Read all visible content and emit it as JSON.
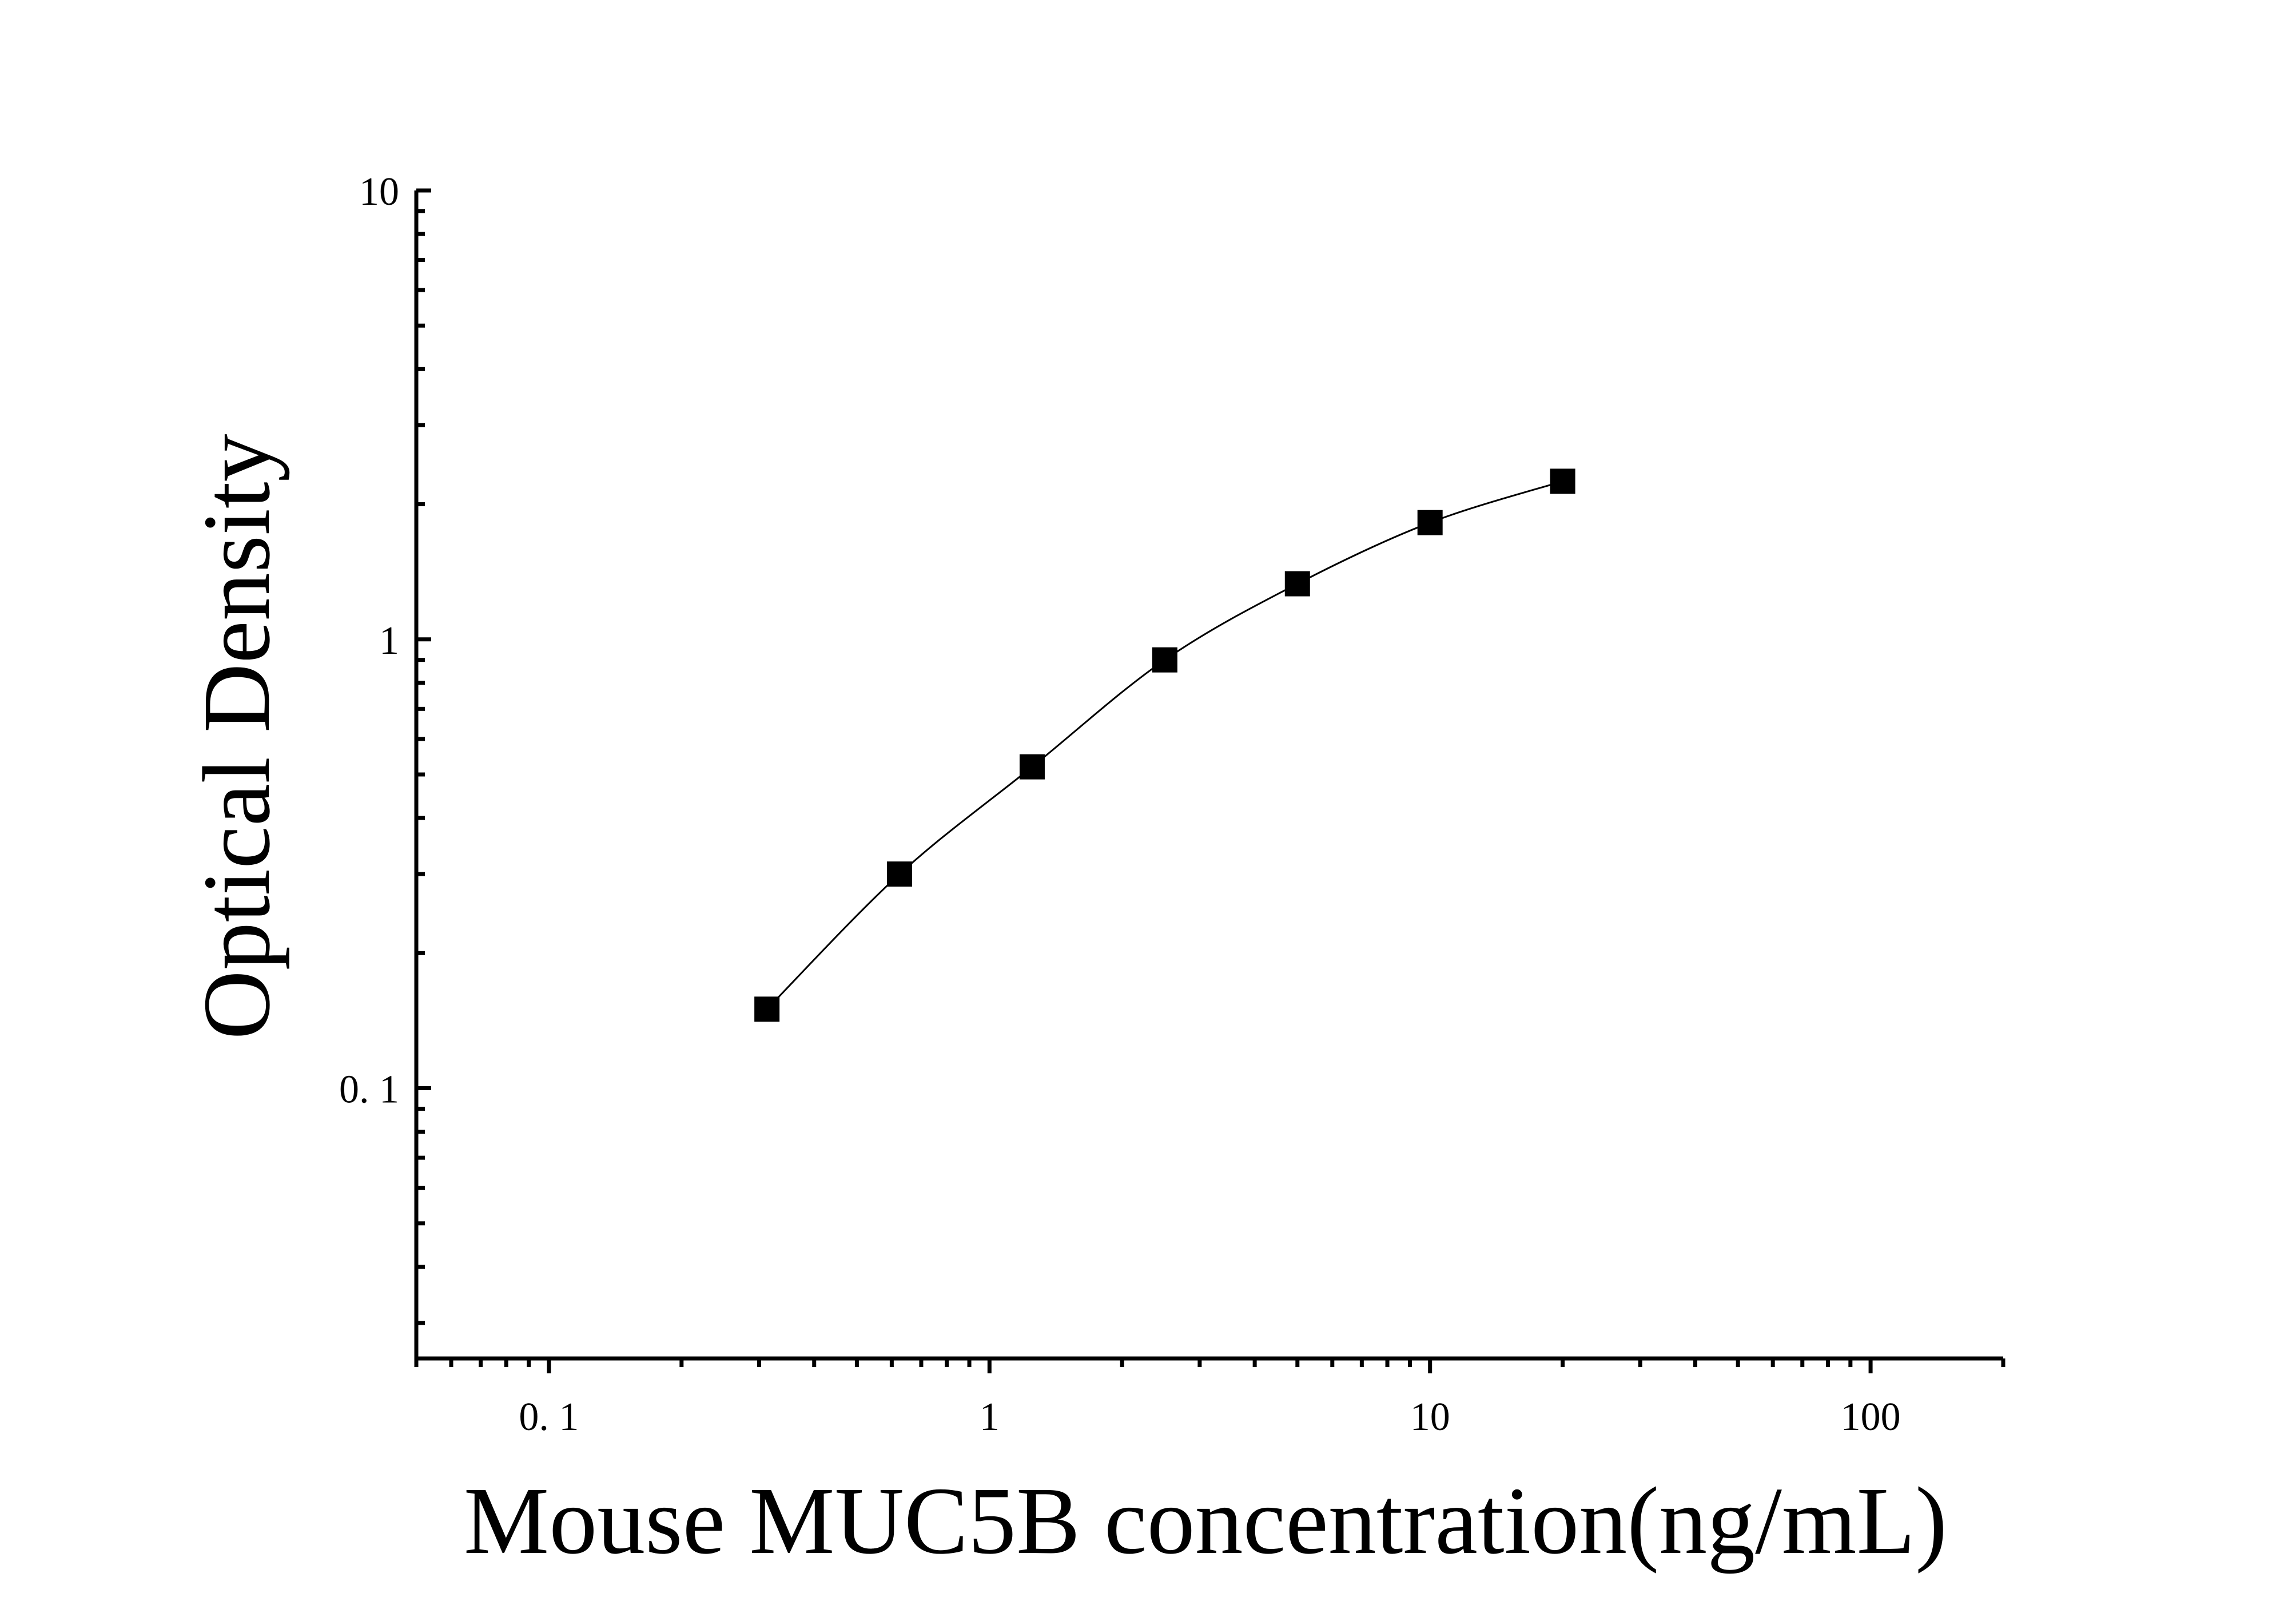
{
  "chart_data": {
    "type": "scatter",
    "x_scale": "log",
    "y_scale": "log",
    "xlabel": "Mouse MUC5B concentration(ng/mL)",
    "ylabel": "Optical Density",
    "xlim": [
      0.05,
      200
    ],
    "ylim": [
      0.025,
      10
    ],
    "x_ticks": [
      {
        "value": 0.1,
        "label": "0. 1"
      },
      {
        "value": 1,
        "label": "1"
      },
      {
        "value": 10,
        "label": "10"
      },
      {
        "value": 100,
        "label": "100"
      }
    ],
    "y_ticks": [
      {
        "value": 0.1,
        "label": "0. 1"
      },
      {
        "value": 1,
        "label": "1"
      },
      {
        "value": 10,
        "label": "10"
      }
    ],
    "grid": false,
    "legend": "none",
    "marker": "square",
    "line": "smooth fit curve through points",
    "series": [
      {
        "x": [
          0.3125,
          0.625,
          1.25,
          2.5,
          5,
          10,
          20
        ],
        "y": [
          0.15,
          0.3,
          0.52,
          0.9,
          1.33,
          1.82,
          2.25
        ]
      }
    ],
    "colors": {
      "marker": "#000000",
      "line": "#000000",
      "axes": "#000000",
      "background": "#ffffff"
    }
  }
}
